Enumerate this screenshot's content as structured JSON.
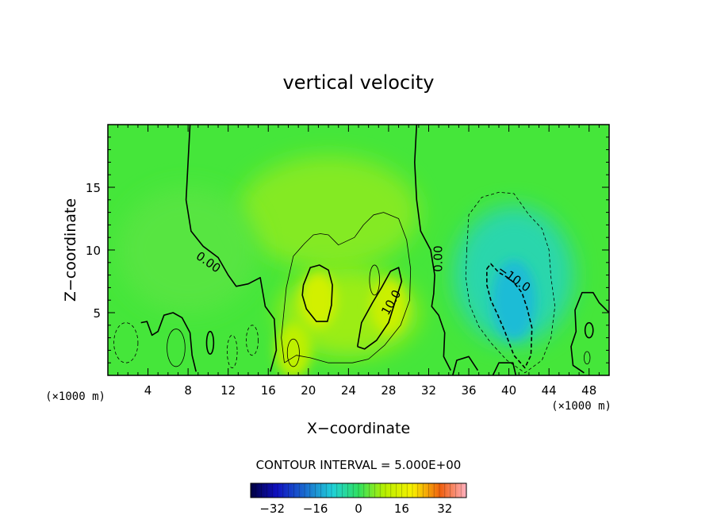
{
  "chart_data": {
    "type": "heatmap",
    "title": "vertical velocity",
    "xlabel": "X−coordinate",
    "ylabel": "Z−coordinate",
    "x_unit_left": "(×1000 m)",
    "x_unit_right": "(×1000 m)",
    "xlim": [
      0,
      50
    ],
    "ylim": [
      0,
      20
    ],
    "x_ticks": [
      4,
      8,
      12,
      16,
      20,
      24,
      28,
      32,
      36,
      40,
      44,
      48
    ],
    "y_ticks": [
      5,
      10,
      15
    ],
    "contour_interval_label": "CONTOUR INTERVAL = 5.000E+00",
    "contour_labels": [
      {
        "text": "0.00",
        "x": 10.0,
        "y": 9.0
      },
      {
        "text": "0.00",
        "x": 33.0,
        "y": 9.3
      },
      {
        "text": "10.0",
        "x": 28.3,
        "y": 5.8
      },
      {
        "text": "−10.0",
        "x": 40.5,
        "y": 7.7
      }
    ],
    "features": [
      {
        "kind": "updraft",
        "x": 21.0,
        "y": 6.0,
        "value": 14
      },
      {
        "kind": "updraft",
        "x": 28.0,
        "y": 5.5,
        "value": 13
      },
      {
        "kind": "updraft",
        "x": 18.5,
        "y": 2.0,
        "value": 11
      },
      {
        "kind": "downdraft",
        "x": 40.5,
        "y": 6.0,
        "value": -12
      }
    ],
    "colorbar": {
      "min": -40,
      "max": 40,
      "ticks": [
        "−32",
        "−16",
        "0",
        "16",
        "32"
      ],
      "tick_values": [
        -32,
        -16,
        0,
        16,
        32
      ]
    }
  }
}
